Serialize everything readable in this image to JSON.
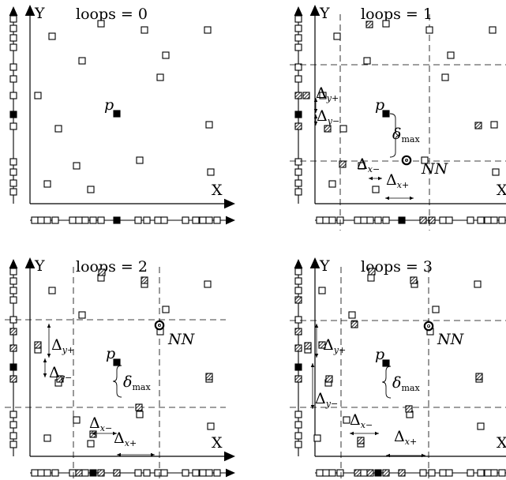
{
  "axis_labels": {
    "x": "X",
    "y": "Y"
  },
  "panels": [
    {
      "id": "loops-0",
      "title": "loops = 0"
    },
    {
      "id": "loops-1",
      "title": "loops = 1"
    },
    {
      "id": "loops-2",
      "title": "loops = 2"
    },
    {
      "id": "loops-3",
      "title": "loops = 3"
    }
  ],
  "labels": {
    "query_point": "p",
    "nearest_neighbor": "NN",
    "delta": "Δ",
    "delta_max_symbol": "δ",
    "delta_max_sub": "max",
    "sub_y_plus": "y+",
    "sub_y_minus": "y−",
    "sub_x_minus": "x−",
    "sub_x_plus": "x+"
  },
  "legend_symbols": {
    "hollow": "unvisited point",
    "black": "query point",
    "hatched": "visited point",
    "ring": "nearest neighbor"
  }
}
